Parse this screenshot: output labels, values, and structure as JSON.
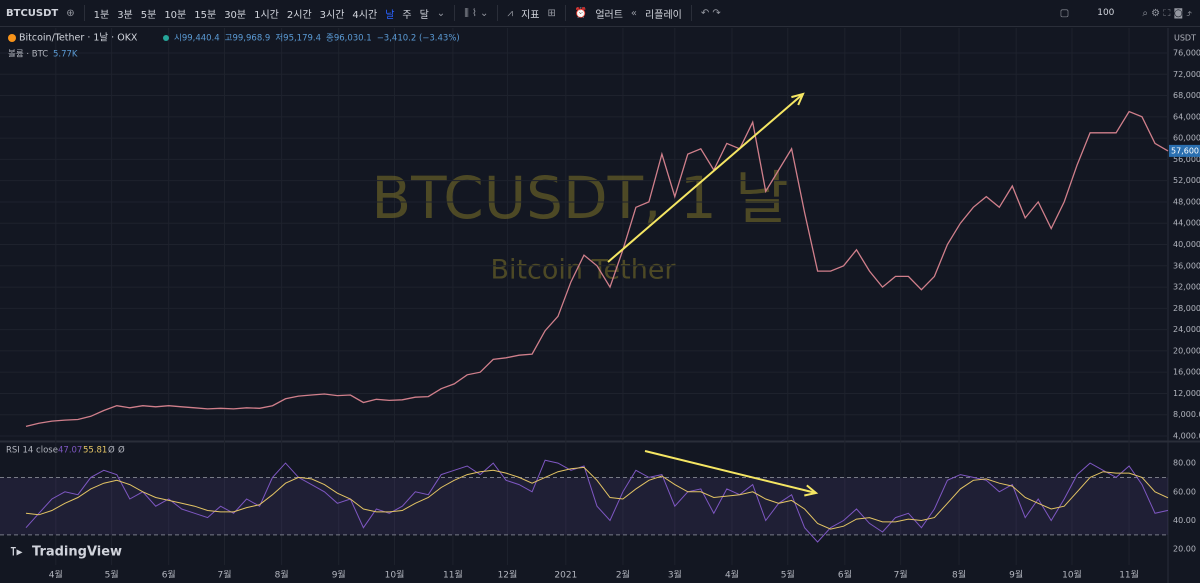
{
  "toolbar": {
    "symbol": "BTCUSDT",
    "intervals": [
      "1분",
      "3분",
      "5분",
      "10분",
      "15분",
      "30분",
      "1시간",
      "2시간",
      "3시간",
      "4시간",
      "날",
      "주",
      "달"
    ],
    "indicators": "지표",
    "alert": "얼러트",
    "replay": "리플레이",
    "zoom": "100"
  },
  "legend": {
    "title": "Bitcoin/Tether · 1날 · OKX",
    "open": "시99,440.4",
    "high": "고99,968.9",
    "low": "저95,179.4",
    "close": "종96,030.1",
    "change": "−3,410.2 (−3.43%)",
    "volume_label": "볼륨 · BTC",
    "volume_value": "5.77K",
    "rsi_label": "RSI 14 close",
    "rsi_extra": [
      "Ø",
      "Ø"
    ]
  },
  "watermark": {
    "symbol": "BTCUSDT, 1 날",
    "name": "Bitcoin Tether"
  },
  "logo": "TradingView",
  "chart_data": [
    {
      "type": "line",
      "currency": "USDT",
      "price_label": "57,600.0",
      "x": [
        0,
        1,
        2,
        3,
        4,
        5,
        6,
        7,
        8,
        9,
        10,
        11,
        12,
        13,
        14,
        15,
        16,
        17,
        18,
        19,
        20,
        21,
        22,
        23,
        24,
        25,
        26,
        27,
        28,
        29,
        30,
        31,
        32,
        33,
        34,
        35,
        36,
        37,
        38,
        39,
        40,
        41,
        42,
        43,
        44,
        45,
        46,
        47,
        48,
        49,
        50,
        51,
        52,
        53,
        54,
        55,
        56,
        57,
        58,
        59,
        60,
        61,
        62,
        63,
        64,
        65,
        66,
        67,
        68,
        69,
        70,
        71,
        72,
        73,
        74,
        75,
        76,
        77,
        78,
        79,
        80,
        81,
        82,
        83,
        84,
        85,
        86,
        87,
        88
      ],
      "series": [
        {
          "color": "#d07f8b",
          "values": [
            5800,
            6400,
            6800,
            7000,
            7100,
            7700,
            8800,
            9700,
            9300,
            9700,
            9500,
            9700,
            9500,
            9300,
            9100,
            9200,
            9100,
            9300,
            9200,
            9700,
            11000,
            11500,
            11700,
            11900,
            11600,
            11700,
            10300,
            10900,
            10700,
            10800,
            11300,
            11400,
            12900,
            13800,
            15500,
            16000,
            18400,
            18700,
            19200,
            19400,
            23800,
            26500,
            33000,
            38000,
            36000,
            32000,
            39000,
            47000,
            48000,
            57000,
            49000,
            57000,
            58000,
            54000,
            59000,
            58000,
            63000,
            50000,
            54000,
            58000,
            46000,
            35000,
            35000,
            36000,
            39000,
            35000,
            32000,
            34000,
            34000,
            31500,
            34000,
            40000,
            44000,
            47000,
            49000,
            47000,
            51000,
            45000,
            48000,
            43000,
            48000,
            55000,
            61000,
            61000,
            61000,
            65000,
            64000,
            59000,
            57600
          ]
        }
      ],
      "xlim": [
        -2,
        88
      ],
      "ylim": [
        3250,
        80700
      ],
      "yticks": [
        {
          "value": 4000,
          "label": "4,000.0"
        },
        {
          "value": 8000,
          "label": "8,000.0"
        },
        {
          "value": 12000,
          "label": "12,000.0"
        },
        {
          "value": 16000,
          "label": "16,000.0"
        },
        {
          "value": 20000,
          "label": "20,000.0"
        },
        {
          "value": 24000,
          "label": "24,000.0"
        },
        {
          "value": 28000,
          "label": "28,000.0"
        },
        {
          "value": 32000,
          "label": "32,000.0"
        },
        {
          "value": 36000,
          "label": "36,000.0"
        },
        {
          "value": 40000,
          "label": "40,000.0"
        },
        {
          "value": 44000,
          "label": "44,000.0"
        },
        {
          "value": 48000,
          "label": "48,000.0"
        },
        {
          "value": 52000,
          "label": "52,000.0"
        },
        {
          "value": 56000,
          "label": "56,000.0"
        },
        {
          "value": 60000,
          "label": "60,000.0"
        },
        {
          "value": 64000,
          "label": "64,000.0"
        },
        {
          "value": 68000,
          "label": "68,000.0"
        },
        {
          "value": 72000,
          "label": "72,000.0"
        },
        {
          "value": 76000,
          "label": "76,000.0"
        }
      ],
      "grid": true
    },
    {
      "type": "line",
      "x": [
        0,
        1,
        2,
        3,
        4,
        5,
        6,
        7,
        8,
        9,
        10,
        11,
        12,
        13,
        14,
        15,
        16,
        17,
        18,
        19,
        20,
        21,
        22,
        23,
        24,
        25,
        26,
        27,
        28,
        29,
        30,
        31,
        32,
        33,
        34,
        35,
        36,
        37,
        38,
        39,
        40,
        41,
        42,
        43,
        44,
        45,
        46,
        47,
        48,
        49,
        50,
        51,
        52,
        53,
        54,
        55,
        56,
        57,
        58,
        59,
        60,
        61,
        62,
        63,
        64,
        65,
        66,
        67,
        68,
        69,
        70,
        71,
        72,
        73,
        74,
        75,
        76,
        77,
        78,
        79,
        80,
        81,
        82,
        83,
        84,
        85,
        86,
        87,
        88
      ],
      "series": [
        {
          "color": "#7e57c2",
          "values": [
            35,
            45,
            55,
            60,
            58,
            70,
            75,
            72,
            55,
            60,
            50,
            55,
            48,
            45,
            42,
            50,
            45,
            55,
            50,
            70,
            80,
            70,
            65,
            60,
            52,
            55,
            35,
            48,
            45,
            50,
            60,
            58,
            72,
            75,
            78,
            72,
            80,
            68,
            65,
            60,
            82,
            80,
            75,
            78,
            50,
            40,
            60,
            75,
            70,
            72,
            50,
            60,
            62,
            45,
            62,
            58,
            65,
            40,
            52,
            58,
            35,
            25,
            35,
            40,
            48,
            38,
            32,
            42,
            45,
            35,
            48,
            68,
            72,
            70,
            68,
            60,
            65,
            42,
            55,
            40,
            55,
            72,
            80,
            75,
            70,
            78,
            65,
            45,
            47.07
          ]
        },
        {
          "color": "#e3c464",
          "values": [
            45,
            44,
            47,
            52,
            56,
            62,
            66,
            68,
            65,
            60,
            56,
            54,
            52,
            50,
            47,
            46,
            46,
            49,
            51,
            58,
            66,
            70,
            69,
            65,
            59,
            55,
            48,
            46,
            46,
            47,
            52,
            56,
            63,
            68,
            72,
            74,
            75,
            73,
            70,
            66,
            70,
            74,
            76,
            77,
            68,
            56,
            55,
            62,
            68,
            71,
            65,
            60,
            60,
            56,
            57,
            58,
            60,
            55,
            52,
            54,
            48,
            38,
            34,
            36,
            41,
            42,
            39,
            39,
            41,
            40,
            42,
            52,
            62,
            68,
            69,
            66,
            64,
            56,
            52,
            48,
            50,
            60,
            70,
            74,
            73,
            73,
            70,
            60,
            55.81
          ]
        }
      ],
      "bands": [
        30,
        70
      ],
      "xlim": [
        -2,
        88
      ],
      "ylim": [
        9,
        94
      ],
      "yticks": [
        {
          "value": 20,
          "label": "20.00"
        },
        {
          "value": 40,
          "label": "40.00"
        },
        {
          "value": 60,
          "label": "60.00"
        },
        {
          "value": 80,
          "label": "80.00"
        }
      ],
      "xticks": [
        {
          "value": 2.3,
          "label": "4월"
        },
        {
          "value": 6.6,
          "label": "5월"
        },
        {
          "value": 11,
          "label": "6월"
        },
        {
          "value": 15.3,
          "label": "7월"
        },
        {
          "value": 19.7,
          "label": "8월"
        },
        {
          "value": 24.1,
          "label": "9월"
        },
        {
          "value": 28.4,
          "label": "10월"
        },
        {
          "value": 32.9,
          "label": "11월"
        },
        {
          "value": 37.1,
          "label": "12월"
        },
        {
          "value": 41.6,
          "label": "2021"
        },
        {
          "value": 46,
          "label": "2월"
        },
        {
          "value": 50,
          "label": "3월"
        },
        {
          "value": 54.4,
          "label": "4월"
        },
        {
          "value": 58.7,
          "label": "5월"
        },
        {
          "value": 63.1,
          "label": "6월"
        },
        {
          "value": 67.4,
          "label": "7월"
        },
        {
          "value": 71.9,
          "label": "8월"
        },
        {
          "value": 76.3,
          "label": "9월"
        },
        {
          "value": 80.6,
          "label": "10월"
        },
        {
          "value": 85,
          "label": "11월"
        }
      ],
      "grid": true
    }
  ]
}
